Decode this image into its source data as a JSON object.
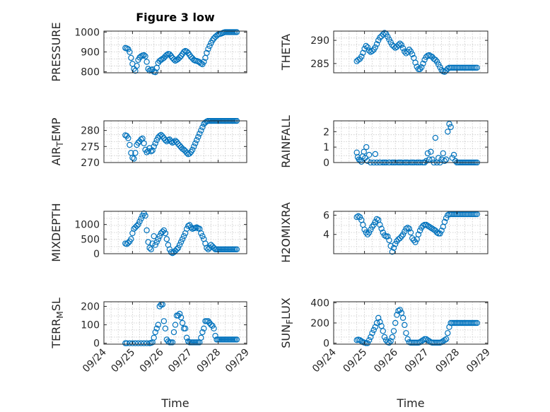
{
  "chart_data": [
    {
      "type": "scatter",
      "title": "Figure 3 low",
      "ylabel": "PRESSURE",
      "xlabel": "",
      "ylim": [
        795,
        1005
      ],
      "yticks": [
        800,
        900,
        1000
      ],
      "xlim": [
        0,
        5
      ],
      "x": [
        0.75,
        0.8,
        0.85,
        0.9,
        0.95,
        1.0,
        1.05,
        1.1,
        1.15,
        1.2,
        1.25,
        1.3,
        1.35,
        1.4,
        1.45,
        1.5,
        1.55,
        1.6,
        1.65,
        1.7,
        1.75,
        1.8,
        1.85,
        1.9,
        1.95,
        2.0,
        2.05,
        2.1,
        2.15,
        2.2,
        2.25,
        2.3,
        2.35,
        2.4,
        2.45,
        2.5,
        2.55,
        2.6,
        2.65,
        2.7,
        2.75,
        2.8,
        2.85,
        2.9,
        2.95,
        3.0,
        3.05,
        3.1,
        3.15,
        3.2,
        3.25,
        3.3,
        3.35,
        3.4,
        3.45,
        3.5,
        3.55,
        3.6,
        3.65,
        3.7,
        3.75,
        3.8,
        3.85,
        3.9,
        3.95,
        4.0,
        4.05,
        4.1,
        4.15,
        4.2,
        4.25,
        4.3,
        4.35,
        4.4,
        4.45,
        4.5,
        4.55,
        4.6,
        4.65
      ],
      "y": [
        920,
        918,
        914,
        900,
        870,
        840,
        815,
        805,
        830,
        860,
        872,
        878,
        882,
        884,
        878,
        850,
        815,
        806,
        810,
        812,
        800,
        798,
        820,
        845,
        855,
        860,
        865,
        870,
        878,
        885,
        890,
        888,
        880,
        870,
        862,
        856,
        860,
        865,
        872,
        880,
        890,
        900,
        905,
        902,
        895,
        885,
        875,
        868,
        860,
        856,
        855,
        852,
        848,
        842,
        838,
        850,
        870,
        895,
        915,
        930,
        945,
        958,
        968,
        976,
        982,
        988,
        990,
        992,
        995,
        998,
        1000,
        1000,
        1000,
        1000,
        1000,
        1000,
        1000,
        1000,
        1000
      ]
    },
    {
      "type": "scatter",
      "ylabel": "THETA",
      "xlabel": "",
      "ylim": [
        283,
        292
      ],
      "yticks": [
        285,
        290
      ],
      "xlim": [
        0,
        5
      ],
      "x": [
        0.75,
        0.8,
        0.85,
        0.9,
        0.95,
        1.0,
        1.05,
        1.1,
        1.15,
        1.2,
        1.25,
        1.3,
        1.35,
        1.4,
        1.45,
        1.5,
        1.55,
        1.6,
        1.65,
        1.7,
        1.75,
        1.8,
        1.85,
        1.9,
        1.95,
        2.0,
        2.05,
        2.1,
        2.15,
        2.2,
        2.25,
        2.3,
        2.35,
        2.4,
        2.45,
        2.5,
        2.55,
        2.6,
        2.65,
        2.7,
        2.75,
        2.8,
        2.85,
        2.9,
        2.95,
        3.0,
        3.05,
        3.1,
        3.15,
        3.2,
        3.25,
        3.3,
        3.35,
        3.4,
        3.45,
        3.5,
        3.55,
        3.6,
        3.65,
        3.7,
        3.75,
        3.8,
        3.85,
        3.9,
        3.95,
        4.0,
        4.05,
        4.1,
        4.15,
        4.2,
        4.25,
        4.3,
        4.35,
        4.4,
        4.45,
        4.5,
        4.55,
        4.6,
        4.65
      ],
      "y": [
        285.5,
        285.8,
        286.0,
        286.5,
        287.3,
        288.2,
        288.8,
        288.5,
        287.8,
        287.5,
        287.7,
        288.0,
        288.5,
        289.2,
        290.0,
        290.6,
        290.9,
        291.3,
        291.6,
        291.4,
        290.8,
        290.2,
        289.6,
        289.0,
        288.7,
        288.4,
        288.6,
        289.0,
        289.3,
        289.0,
        288.3,
        287.6,
        287.2,
        287.5,
        288.0,
        287.6,
        287.0,
        286.2,
        285.2,
        284.3,
        283.8,
        283.8,
        284.2,
        285.0,
        285.8,
        286.4,
        286.7,
        286.8,
        286.6,
        286.4,
        286.0,
        285.8,
        285.4,
        284.8,
        284.2,
        283.6,
        283.3,
        283.2,
        283.5,
        283.9,
        284.1,
        284.1,
        284.1,
        284.1,
        284.1,
        284.1,
        284.1,
        284.1,
        284.1,
        284.1,
        284.1,
        284.1,
        284.1,
        284.1,
        284.1,
        284.1,
        284.1,
        284.1,
        284.1
      ]
    },
    {
      "type": "scatter",
      "ylabel": "AIR_TEMP",
      "xlabel": "",
      "ylim": [
        270,
        283
      ],
      "yticks": [
        270,
        275,
        280
      ],
      "xlim": [
        0,
        5
      ],
      "x": [
        0.75,
        0.8,
        0.85,
        0.9,
        0.95,
        1.0,
        1.05,
        1.1,
        1.15,
        1.2,
        1.25,
        1.3,
        1.35,
        1.4,
        1.45,
        1.5,
        1.55,
        1.6,
        1.65,
        1.7,
        1.75,
        1.8,
        1.85,
        1.9,
        1.95,
        2.0,
        2.05,
        2.1,
        2.15,
        2.2,
        2.25,
        2.3,
        2.35,
        2.4,
        2.45,
        2.5,
        2.55,
        2.6,
        2.65,
        2.7,
        2.75,
        2.8,
        2.85,
        2.9,
        2.95,
        3.0,
        3.05,
        3.1,
        3.15,
        3.2,
        3.25,
        3.3,
        3.35,
        3.4,
        3.45,
        3.5,
        3.55,
        3.6,
        3.65,
        3.7,
        3.75,
        3.8,
        3.85,
        3.9,
        3.95,
        4.0,
        4.05,
        4.1,
        4.15,
        4.2,
        4.25,
        4.3,
        4.35,
        4.4,
        4.45,
        4.5,
        4.55,
        4.6,
        4.65
      ],
      "y": [
        278.5,
        278.3,
        277.6,
        275.5,
        273.0,
        271.5,
        271.2,
        273.0,
        275.5,
        276.2,
        276.6,
        277.2,
        277.5,
        276.0,
        274.0,
        273.2,
        273.6,
        274.5,
        273.5,
        273.8,
        275.0,
        276.0,
        277.0,
        277.8,
        278.3,
        278.6,
        278.2,
        277.6,
        277.0,
        276.6,
        277.0,
        277.2,
        276.6,
        276.2,
        276.4,
        276.8,
        276.4,
        275.8,
        275.3,
        274.8,
        274.3,
        274.0,
        273.6,
        273.0,
        272.6,
        272.8,
        273.3,
        274.0,
        275.0,
        276.0,
        277.0,
        278.0,
        279.0,
        280.0,
        281.0,
        282.0,
        282.5,
        282.8,
        283.0,
        283.0,
        283.0,
        283.0,
        283.0,
        283.0,
        283.0,
        283.0,
        283.0,
        283.0,
        283.0,
        283.0,
        283.0,
        283.0,
        283.0,
        283.0,
        283.0,
        283.0,
        283.0,
        283.0,
        283.0
      ]
    },
    {
      "type": "scatter",
      "ylabel": "RAINFALL",
      "xlabel": "",
      "ylim": [
        0,
        2.7
      ],
      "yticks": [
        0,
        1,
        2
      ],
      "xlim": [
        0,
        5
      ],
      "x": [
        0.75,
        0.78,
        0.82,
        0.86,
        0.9,
        0.94,
        0.98,
        1.02,
        1.06,
        1.1,
        1.15,
        1.2,
        1.3,
        1.4,
        1.5,
        1.6,
        1.7,
        1.8,
        1.9,
        2.0,
        2.1,
        2.2,
        2.3,
        2.4,
        2.5,
        2.6,
        2.7,
        2.8,
        2.9,
        3.0,
        3.05,
        3.1,
        3.15,
        3.2,
        3.25,
        3.3,
        3.35,
        3.4,
        3.45,
        3.5,
        3.55,
        3.6,
        3.65,
        3.7,
        3.75,
        3.8,
        3.85,
        3.9,
        3.95,
        4.0,
        4.05,
        4.1,
        4.15,
        4.2,
        4.25,
        4.3,
        4.35,
        4.4,
        4.45,
        4.5,
        4.55,
        4.6,
        4.65,
        1.35,
        1.5,
        1.65,
        1.8,
        1.95,
        2.15,
        2.35,
        2.55,
        2.75,
        2.95
      ],
      "y": [
        0.65,
        0.35,
        0.2,
        0.15,
        0.05,
        0.4,
        0.7,
        0.3,
        1.0,
        0.1,
        0.5,
        0.0,
        0.0,
        0.0,
        0.0,
        0.0,
        0.0,
        0.0,
        0.0,
        0.0,
        0.0,
        0.0,
        0.0,
        0.0,
        0.0,
        0.0,
        0.0,
        0.0,
        0.0,
        0.1,
        0.6,
        0.2,
        0.7,
        0.2,
        0.0,
        1.6,
        0.0,
        0.3,
        0.0,
        0.2,
        0.6,
        0.1,
        0.2,
        2.0,
        2.5,
        2.3,
        0.3,
        0.5,
        0.1,
        0.0,
        0.0,
        0.0,
        0.0,
        0.0,
        0.0,
        0.0,
        0.0,
        0.0,
        0.0,
        0.0,
        0.0,
        0.0,
        0.0,
        0.55,
        0.0,
        0.0,
        0.0,
        0.0,
        0.0,
        0.0,
        0.0,
        0.0,
        0.0
      ]
    },
    {
      "type": "scatter",
      "ylabel": "MIXDEPTH",
      "xlabel": "",
      "ylim": [
        0,
        1450
      ],
      "yticks": [
        0,
        500,
        1000
      ],
      "xlim": [
        0,
        5
      ],
      "x": [
        0.75,
        0.8,
        0.85,
        0.9,
        0.95,
        1.0,
        1.05,
        1.1,
        1.15,
        1.2,
        1.25,
        1.3,
        1.35,
        1.4,
        1.45,
        1.5,
        1.55,
        1.6,
        1.65,
        1.7,
        1.75,
        1.8,
        1.85,
        1.9,
        1.95,
        2.0,
        2.05,
        2.1,
        2.15,
        2.2,
        2.25,
        2.3,
        2.35,
        2.4,
        2.45,
        2.5,
        2.55,
        2.6,
        2.65,
        2.7,
        2.75,
        2.8,
        2.85,
        2.9,
        2.95,
        3.0,
        3.05,
        3.1,
        3.15,
        3.2,
        3.25,
        3.3,
        3.35,
        3.4,
        3.45,
        3.5,
        3.55,
        3.6,
        3.65,
        3.7,
        3.75,
        3.8,
        3.85,
        3.9,
        3.95,
        4.0,
        4.05,
        4.1,
        4.15,
        4.2,
        4.25,
        4.3,
        4.35,
        4.4,
        4.45,
        4.5,
        4.55,
        4.6,
        4.65
      ],
      "y": [
        350,
        330,
        370,
        420,
        500,
        700,
        850,
        900,
        950,
        1000,
        1100,
        1200,
        1300,
        1380,
        1300,
        800,
        400,
        200,
        150,
        350,
        600,
        300,
        400,
        500,
        600,
        700,
        750,
        800,
        700,
        500,
        300,
        150,
        50,
        20,
        50,
        100,
        150,
        200,
        300,
        400,
        500,
        600,
        700,
        850,
        950,
        980,
        900,
        850,
        870,
        880,
        900,
        870,
        850,
        700,
        600,
        500,
        350,
        200,
        150,
        200,
        300,
        250,
        200,
        150,
        150,
        150,
        150,
        150,
        150,
        150,
        150,
        150,
        150,
        150,
        150,
        150,
        150,
        150,
        150
      ]
    },
    {
      "type": "scatter",
      "ylabel": "H2OMIXRA",
      "xlabel": "",
      "ylim": [
        2,
        6.4
      ],
      "yticks": [
        4,
        6
      ],
      "xlim": [
        0,
        5
      ],
      "x": [
        0.75,
        0.8,
        0.85,
        0.9,
        0.95,
        1.0,
        1.05,
        1.1,
        1.15,
        1.2,
        1.25,
        1.3,
        1.35,
        1.4,
        1.45,
        1.5,
        1.55,
        1.6,
        1.65,
        1.7,
        1.75,
        1.8,
        1.85,
        1.9,
        1.95,
        2.0,
        2.05,
        2.1,
        2.15,
        2.2,
        2.25,
        2.3,
        2.35,
        2.4,
        2.45,
        2.5,
        2.55,
        2.6,
        2.65,
        2.7,
        2.75,
        2.8,
        2.85,
        2.9,
        2.95,
        3.0,
        3.05,
        3.1,
        3.15,
        3.2,
        3.25,
        3.3,
        3.35,
        3.4,
        3.45,
        3.5,
        3.55,
        3.6,
        3.65,
        3.7,
        3.75,
        3.8,
        3.85,
        3.9,
        3.95,
        4.0,
        4.05,
        4.1,
        4.15,
        4.2,
        4.25,
        4.3,
        4.35,
        4.4,
        4.45,
        4.5,
        4.55,
        4.6,
        4.65
      ],
      "y": [
        5.8,
        5.9,
        5.8,
        5.5,
        5.0,
        4.5,
        4.2,
        4.0,
        4.2,
        4.5,
        4.8,
        5.0,
        5.3,
        5.6,
        5.5,
        5.0,
        4.6,
        4.2,
        3.9,
        3.8,
        3.8,
        3.4,
        2.8,
        2.2,
        2.6,
        3.0,
        3.3,
        3.5,
        3.6,
        3.8,
        4.0,
        4.3,
        4.6,
        4.7,
        4.6,
        4.2,
        3.6,
        3.4,
        3.2,
        3.5,
        4.0,
        4.4,
        4.7,
        4.9,
        5.0,
        5.0,
        4.9,
        4.8,
        4.7,
        4.6,
        4.5,
        4.4,
        4.2,
        4.1,
        4.1,
        4.4,
        4.8,
        5.3,
        5.7,
        6.0,
        6.1,
        6.1,
        6.1,
        6.1,
        6.1,
        6.1,
        6.1,
        6.1,
        6.1,
        6.1,
        6.1,
        6.1,
        6.1,
        6.1,
        6.1,
        6.1,
        6.1,
        6.1,
        6.1
      ]
    },
    {
      "type": "scatter",
      "ylabel": "TERR_MSL",
      "xlabel": "Time",
      "ylim": [
        -5,
        225
      ],
      "yticks": [
        0,
        100,
        200
      ],
      "xlim": [
        0,
        5
      ],
      "xticks": [
        "09/24",
        "09/25",
        "09/26",
        "09/27",
        "09/28",
        "09/29"
      ],
      "x": [
        0.75,
        0.8,
        0.9,
        1.0,
        1.1,
        1.2,
        1.3,
        1.4,
        1.5,
        1.6,
        1.65,
        1.7,
        1.75,
        1.8,
        1.85,
        1.9,
        1.95,
        2.0,
        2.05,
        2.1,
        2.15,
        2.2,
        2.25,
        2.3,
        2.35,
        2.4,
        2.45,
        2.5,
        2.55,
        2.6,
        2.65,
        2.7,
        2.75,
        2.8,
        2.85,
        2.9,
        2.95,
        3.0,
        3.05,
        3.1,
        3.15,
        3.2,
        3.25,
        3.3,
        3.35,
        3.4,
        3.45,
        3.5,
        3.55,
        3.6,
        3.65,
        3.7,
        3.75,
        3.8,
        3.85,
        3.9,
        3.95,
        4.0,
        4.05,
        4.1,
        4.15,
        4.2,
        4.25,
        4.3,
        4.35,
        4.4,
        4.45,
        4.5,
        4.55,
        4.6,
        4.65
      ],
      "y": [
        0,
        0,
        0,
        0,
        0,
        0,
        0,
        0,
        0,
        0,
        2,
        5,
        30,
        60,
        80,
        100,
        200,
        210,
        210,
        120,
        80,
        20,
        10,
        5,
        5,
        5,
        60,
        100,
        150,
        150,
        160,
        140,
        110,
        80,
        80,
        30,
        10,
        5,
        5,
        5,
        5,
        5,
        5,
        5,
        5,
        30,
        60,
        80,
        120,
        120,
        120,
        110,
        100,
        95,
        80,
        40,
        20,
        20,
        20,
        20,
        20,
        20,
        20,
        20,
        20,
        20,
        20,
        20,
        20,
        20,
        20
      ]
    },
    {
      "type": "scatter",
      "ylabel": "SUN_FLUX",
      "xlabel": "Time",
      "ylim": [
        -10,
        410
      ],
      "yticks": [
        0,
        200,
        400
      ],
      "xlim": [
        0,
        5
      ],
      "xticks": [
        "09/24",
        "09/25",
        "09/26",
        "09/27",
        "09/28",
        "09/29"
      ],
      "x": [
        0.75,
        0.8,
        0.85,
        0.9,
        0.95,
        1.0,
        1.05,
        1.1,
        1.15,
        1.2,
        1.25,
        1.3,
        1.35,
        1.4,
        1.45,
        1.5,
        1.55,
        1.6,
        1.65,
        1.7,
        1.75,
        1.8,
        1.85,
        1.9,
        1.95,
        2.0,
        2.05,
        2.1,
        2.15,
        2.2,
        2.25,
        2.3,
        2.35,
        2.4,
        2.45,
        2.5,
        2.55,
        2.6,
        2.65,
        2.7,
        2.75,
        2.8,
        2.85,
        2.9,
        2.95,
        3.0,
        3.05,
        3.1,
        3.15,
        3.2,
        3.25,
        3.3,
        3.35,
        3.4,
        3.45,
        3.5,
        3.55,
        3.6,
        3.65,
        3.7,
        3.75,
        3.8,
        3.85,
        3.9,
        3.95,
        4.0,
        4.05,
        4.1,
        4.15,
        4.2,
        4.25,
        4.3,
        4.35,
        4.4,
        4.45,
        4.5,
        4.55,
        4.6,
        4.65
      ],
      "y": [
        30,
        35,
        30,
        20,
        10,
        5,
        0,
        0,
        30,
        60,
        100,
        130,
        160,
        200,
        250,
        210,
        170,
        120,
        60,
        30,
        10,
        5,
        20,
        60,
        120,
        200,
        280,
        320,
        330,
        300,
        250,
        180,
        100,
        40,
        10,
        5,
        5,
        5,
        5,
        5,
        5,
        10,
        20,
        30,
        40,
        40,
        30,
        20,
        10,
        5,
        5,
        5,
        5,
        5,
        5,
        10,
        20,
        30,
        40,
        100,
        160,
        200,
        200,
        200,
        200,
        200,
        200,
        200,
        200,
        200,
        200,
        200,
        200,
        200,
        200,
        200,
        200,
        200,
        200
      ]
    }
  ]
}
